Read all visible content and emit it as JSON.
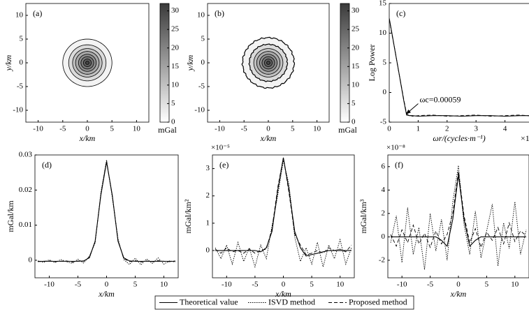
{
  "chart_data": [
    {
      "type": "contour",
      "panel_label": "(a)",
      "xlabel": "x/km",
      "ylabel": "y/km",
      "xlim": [
        -12.5,
        12.5
      ],
      "ylim": [
        -12.5,
        12.5
      ],
      "xticks": [
        -10,
        -5,
        0,
        5,
        10
      ],
      "yticks": [
        -10,
        -5,
        0,
        5,
        10
      ],
      "contour_style": "smooth",
      "contours": [
        {
          "level": 2,
          "radius": 5
        },
        {
          "level": 6,
          "radius": 3.8
        },
        {
          "level": 10,
          "radius": 3
        },
        {
          "level": 14,
          "radius": 2.4
        },
        {
          "level": 18,
          "radius": 1.8
        },
        {
          "level": 22,
          "radius": 1.3
        },
        {
          "level": 26,
          "radius": 0.8
        },
        {
          "level": 30,
          "radius": 0.35
        }
      ],
      "colorbar": {
        "lim": [
          0,
          32
        ],
        "ticks": [
          0,
          5,
          10,
          15,
          20,
          25,
          30
        ],
        "label": "mGal"
      }
    },
    {
      "type": "contour",
      "panel_label": "(b)",
      "xlabel": "x/km",
      "ylabel": "y/km",
      "xlim": [
        -12.5,
        12.5
      ],
      "ylim": [
        -12.5,
        12.5
      ],
      "xticks": [
        -10,
        -5,
        0,
        5,
        10
      ],
      "yticks": [
        -10,
        -5,
        0,
        5,
        10
      ],
      "contour_style": "rough",
      "contours": [
        {
          "level": 2,
          "radius": 5.3
        },
        {
          "level": 6,
          "radius": 3.9
        },
        {
          "level": 10,
          "radius": 3
        },
        {
          "level": 14,
          "radius": 2.4
        },
        {
          "level": 18,
          "radius": 1.8
        },
        {
          "level": 22,
          "radius": 1.3
        },
        {
          "level": 26,
          "radius": 0.8
        },
        {
          "level": 30,
          "radius": 0.35
        }
      ],
      "colorbar": {
        "lim": [
          0,
          32
        ],
        "ticks": [
          0,
          5,
          10,
          15,
          20,
          25,
          30
        ],
        "label": "mGal"
      }
    },
    {
      "type": "line",
      "panel_label": "(c)",
      "xlabel": "ωr/(cycles·m⁻¹)",
      "ylabel": "Log Power",
      "xexponent": "×1",
      "xlim": [
        0,
        5
      ],
      "ylim": [
        -5,
        15
      ],
      "xticks": [
        0,
        1,
        2,
        3,
        4
      ],
      "yticks": [
        -5,
        0,
        5,
        10,
        15
      ],
      "x": [
        0,
        0.1,
        0.2,
        0.3,
        0.4,
        0.5,
        0.6,
        0.7,
        0.8,
        1,
        1.5,
        2,
        2.5,
        3,
        3.5,
        4,
        4.5,
        5
      ],
      "series": [
        {
          "style": "solid",
          "color": "#000000",
          "values": [
            12.5,
            9.8,
            7,
            4.3,
            1.5,
            -1.3,
            -3.8,
            -3.9,
            -3.9,
            -4,
            -3.9,
            -3.9,
            -4,
            -3.9,
            -3.9,
            -4,
            -3.9,
            -3.9
          ]
        },
        {
          "style": "dashed",
          "color": "#000000",
          "values": [
            12.4,
            9.6,
            7.1,
            4.2,
            1.6,
            -1.1,
            -3.6,
            -3.8,
            -4,
            -3.9,
            -3.8,
            -4,
            -3.9,
            -3.8,
            -4,
            -3.9,
            -3.8,
            -4
          ]
        }
      ],
      "annotation": {
        "text": "ωc=0.00059",
        "xy": [
          0.59,
          -3.6
        ],
        "xytext": [
          1.05,
          -1.3
        ]
      }
    },
    {
      "type": "line",
      "panel_label": "(d)",
      "xlabel": "x/km",
      "ylabel": "mGal/km",
      "xlim": [
        -12.5,
        12.5
      ],
      "ylim": [
        -0.005,
        0.03
      ],
      "xticks": [
        -10,
        -5,
        0,
        5,
        10
      ],
      "yticks": [
        0,
        0.01,
        0.02,
        0.03
      ],
      "x": [
        -12,
        -11,
        -10,
        -9,
        -8,
        -7,
        -6,
        -5,
        -4,
        -3,
        -2,
        -1,
        0,
        1,
        2,
        3,
        4,
        5,
        6,
        7,
        8,
        9,
        10,
        11,
        12
      ],
      "series": [
        {
          "name": "Theoretical value",
          "style": "solid",
          "color": "#000000",
          "values": [
            -0.0003,
            -0.0003,
            -0.0003,
            -0.0003,
            -0.0003,
            -0.0003,
            -0.0003,
            -0.0003,
            -0.0002,
            0.0007,
            0.0054,
            0.0185,
            0.028,
            0.0185,
            0.0054,
            0.0007,
            -0.0002,
            -0.0003,
            -0.0003,
            -0.0003,
            -0.0003,
            -0.0003,
            -0.0003,
            -0.0003,
            -0.0003
          ]
        },
        {
          "name": "ISVD method",
          "style": "dotted",
          "color": "#000000",
          "values": [
            -0.0002,
            -0.0006,
            0.0001,
            -0.0007,
            0.0002,
            -0.0004,
            -0.0009,
            0.0003,
            -0.0008,
            0.0012,
            0.0049,
            0.0192,
            0.0286,
            0.0179,
            0.0061,
            0.0002,
            -0.0012,
            0.0006,
            -0.0013,
            0.0004,
            -0.0009,
            0.0007,
            -0.0011,
            -0.0002,
            -0.0005
          ]
        },
        {
          "name": "Proposed method",
          "style": "dashed",
          "color": "#000000",
          "values": [
            -0.0004,
            -0.0003,
            -0.0002,
            -0.0004,
            -0.0003,
            -0.0002,
            -0.0005,
            -0.0002,
            -0.0003,
            0.0009,
            0.0052,
            0.0188,
            0.0283,
            0.0183,
            0.0056,
            0.0005,
            -0.0004,
            -0.0001,
            -0.0005,
            -0.0002,
            -0.0004,
            -0.0001,
            -0.0003,
            -0.0004,
            -0.0002
          ]
        }
      ],
      "legend": "below"
    },
    {
      "type": "line",
      "panel_label": "(e)",
      "xlabel": "x/km",
      "ylabel": "mGal/km²",
      "yexponent": "×10⁻⁵",
      "xlim": [
        -12.5,
        12.5
      ],
      "ylim": [
        -1,
        3.5
      ],
      "xticks": [
        -10,
        -5,
        0,
        5,
        10
      ],
      "yticks": [
        0,
        1,
        2,
        3
      ],
      "x": [
        -12,
        -11,
        -10,
        -9,
        -8,
        -7,
        -6,
        -5,
        -4,
        -3,
        -2,
        -1,
        0,
        1,
        2,
        3,
        4,
        5,
        6,
        7,
        8,
        9,
        10,
        11,
        12
      ],
      "series": [
        {
          "name": "Theoretical value",
          "style": "solid",
          "color": "#000000",
          "values": [
            0,
            0,
            0,
            0,
            0,
            0,
            0,
            0,
            -0.05,
            0.1,
            0.7,
            2.2,
            3.4,
            2.2,
            0.7,
            0.1,
            -0.2,
            -0.15,
            -0.1,
            -0.05,
            0,
            0,
            0,
            0,
            0
          ]
        },
        {
          "name": "ISVD method",
          "style": "dotted",
          "color": "#000000",
          "values": [
            0.1,
            -0.3,
            0.2,
            -0.5,
            0.3,
            -0.4,
            0.1,
            -0.6,
            0.2,
            -0.3,
            0.9,
            2,
            3.3,
            2.4,
            0.5,
            -0.4,
            0.1,
            -0.5,
            0.3,
            -0.6,
            0.2,
            -0.3,
            0.4,
            -0.5,
            0.1
          ]
        },
        {
          "name": "Proposed method",
          "style": "dashed",
          "color": "#000000",
          "values": [
            0.05,
            -0.1,
            0.1,
            -0.05,
            0,
            -0.1,
            0.05,
            -0.1,
            0,
            0.05,
            0.8,
            2.3,
            3.4,
            2.1,
            0.6,
            0.2,
            -0.15,
            -0.1,
            0,
            -0.1,
            0.1,
            0,
            0.05,
            -0.05,
            0.2
          ]
        }
      ]
    },
    {
      "type": "line",
      "panel_label": "(f)",
      "xlabel": "x/km",
      "ylabel": "mGal/km³",
      "yexponent": "×10⁻⁸",
      "xlim": [
        -12.5,
        12.5
      ],
      "ylim": [
        -3.5,
        7
      ],
      "xticks": [
        -10,
        -5,
        0,
        5,
        10
      ],
      "yticks": [
        -2,
        0,
        2,
        4,
        6
      ],
      "x": [
        -12,
        -11,
        -10,
        -9,
        -8,
        -7,
        -6,
        -5,
        -4,
        -3,
        -2,
        -1,
        0,
        1,
        2,
        3,
        4,
        5,
        6,
        7,
        8,
        9,
        10,
        11,
        12
      ],
      "series": [
        {
          "name": "Theoretical value",
          "style": "solid",
          "color": "#000000",
          "values": [
            0,
            0,
            0,
            0,
            0,
            0,
            0,
            0,
            0,
            -0.3,
            -0.8,
            1.5,
            5.3,
            1.5,
            -0.8,
            -0.3,
            0,
            0,
            0,
            0,
            0,
            0,
            0,
            0,
            0
          ]
        },
        {
          "name": "ISVD method",
          "style": "dotted",
          "color": "#000000",
          "values": [
            -0.5,
            1.8,
            -2.2,
            2.5,
            -1.5,
            0.8,
            -2.8,
            2,
            -1.2,
            1.5,
            -2,
            3,
            6.1,
            1,
            -1.5,
            2.2,
            -1.8,
            0.5,
            2.8,
            -2.5,
            1.2,
            -1,
            3,
            -1.5,
            0.6
          ]
        },
        {
          "name": "Proposed method",
          "style": "dashed",
          "color": "#000000",
          "values": [
            0.2,
            -0.8,
            0.6,
            -0.5,
            1,
            -0.6,
            0.3,
            -0.9,
            0.5,
            -0.6,
            0.2,
            2,
            5.6,
            1.8,
            -0.5,
            0.7,
            -0.9,
            0.4,
            -0.3,
            0.8,
            -0.6,
            1.2,
            -0.4,
            0.5,
            0.1
          ]
        }
      ]
    }
  ]
}
